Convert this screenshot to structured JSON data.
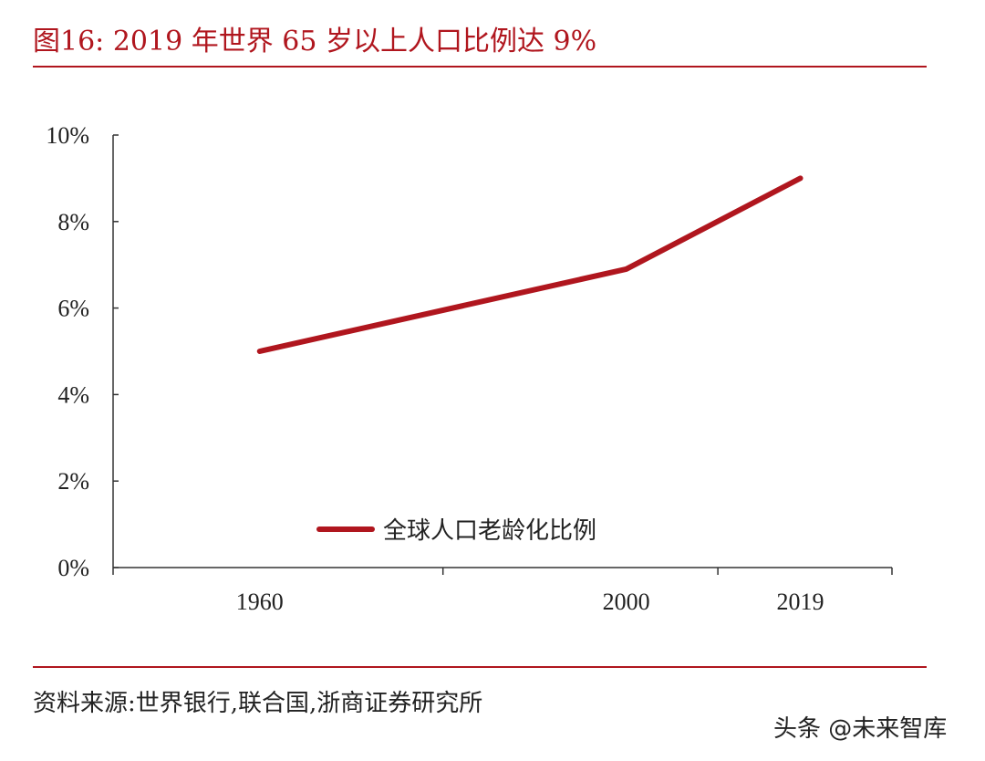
{
  "header": {
    "title": "图16:  2019 年世界 65 岁以上人口比例达 9%"
  },
  "chart_data": {
    "type": "line",
    "categories": [
      "1960",
      "2000",
      "2019"
    ],
    "x_ticks": [
      1960,
      1980,
      2000,
      2010,
      2019,
      2029
    ],
    "series": [
      {
        "name": "全球人口老龄化比例",
        "x": [
          1960,
          2000,
          2019
        ],
        "values": [
          5.0,
          6.9,
          9.0
        ],
        "color": "#b0161e"
      }
    ],
    "ylim": [
      0,
      10
    ],
    "yticks": [
      "0%",
      "2%",
      "4%",
      "6%",
      "8%",
      "10%"
    ],
    "legend_position": "lower-center",
    "grid": false
  },
  "footer": {
    "source": "资料来源:世界银行,联合国,浙商证券研究所",
    "watermark": "头条 @未来智库"
  },
  "colors": {
    "accent": "#b0161e",
    "text": "#222222",
    "axis": "#333333"
  }
}
